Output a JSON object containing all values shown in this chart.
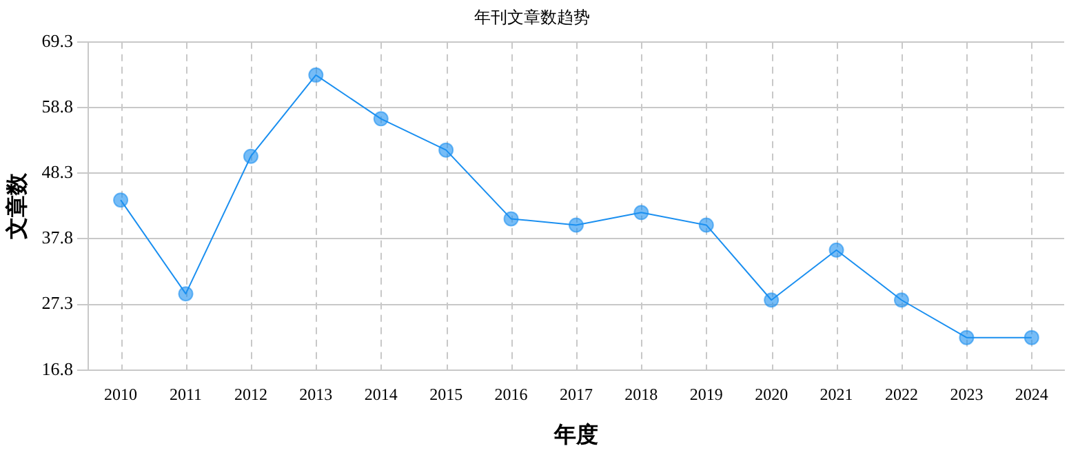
{
  "chart_data": {
    "type": "line",
    "title": "年刊文章数趋势",
    "xlabel": "年度",
    "ylabel": "文章数",
    "categories": [
      "2010",
      "2011",
      "2012",
      "2013",
      "2014",
      "2015",
      "2016",
      "2017",
      "2018",
      "2019",
      "2020",
      "2021",
      "2022",
      "2023",
      "2024"
    ],
    "series": [
      {
        "color": "#1a8ff0",
        "values": [
          44,
          29,
          51,
          64,
          57,
          52,
          41,
          40,
          42,
          40,
          28,
          36,
          28,
          22,
          22
        ]
      }
    ],
    "ylim": [
      16.8,
      69.3
    ],
    "yticks": [
      16.8,
      27.3,
      37.8,
      48.3,
      58.8,
      69.3
    ],
    "grid": true,
    "marker": "circle",
    "line_style": "solid",
    "legend": false
  }
}
